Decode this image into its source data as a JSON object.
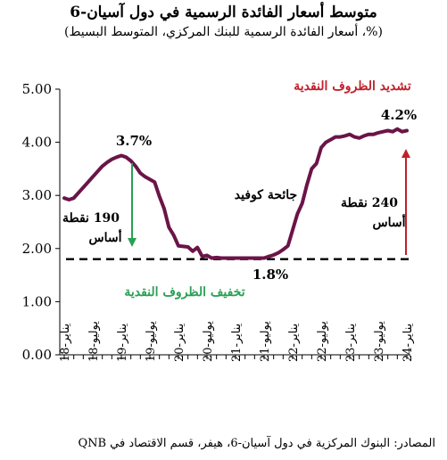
{
  "title": "متوسط أسعار الفائدة الرسمية في دول آسيان-6",
  "subtitle": "(%، أسعار الفائدة الرسمية للبنك المركزي، المتوسط البسيط)",
  "source": "المصادر: البنوك المركزية في دول آسيان-6، هيفر، قسم الاقتصاد في QNB",
  "colors": {
    "line": "#6b1448",
    "tightening": "#c0202a",
    "easing": "#2aa055",
    "reference": "#000000"
  },
  "chart_data": {
    "type": "line",
    "ylim": [
      0,
      5
    ],
    "yticks": [
      "0.00",
      "1.00",
      "2.00",
      "3.00",
      "4.00",
      "5.00"
    ],
    "categories": [
      "يناير-18",
      "يوليو-18",
      "يناير-19",
      "يوليو-19",
      "يناير-20",
      "يوليو-20",
      "يناير-21",
      "يوليو-21",
      "يناير-22",
      "يوليو-22",
      "يناير-23",
      "يوليو-23",
      "يناير-24"
    ],
    "series": [
      {
        "x": [
          0,
          0.5,
          1,
          1.5,
          2,
          2.5,
          3,
          3.5,
          4,
          4.5,
          5,
          5.5,
          6,
          6.5,
          7,
          7.5,
          8,
          8.5,
          9,
          9.5,
          10,
          10.5,
          11,
          11.5,
          12,
          12.5,
          13,
          13.5,
          14,
          14.5,
          15,
          15.5,
          16,
          16.5,
          17,
          17.5,
          18,
          18.5,
          19,
          19.5,
          20,
          20.5,
          21,
          21.5,
          22,
          22.5,
          23,
          23.5,
          24,
          24.5,
          25,
          25.5,
          26,
          26.5,
          27,
          27.5,
          28,
          28.5,
          29,
          29.5,
          30,
          30.5,
          31,
          31.5,
          32,
          32.5,
          33,
          33.5,
          34,
          34.5,
          35,
          35.5,
          36
        ],
        "y": [
          2.95,
          2.92,
          2.95,
          3.05,
          3.15,
          3.25,
          3.35,
          3.45,
          3.55,
          3.62,
          3.68,
          3.72,
          3.75,
          3.72,
          3.65,
          3.55,
          3.42,
          3.35,
          3.3,
          3.25,
          2.98,
          2.75,
          2.4,
          2.25,
          2.05,
          2.04,
          2.03,
          1.95,
          2.02,
          1.85,
          1.87,
          1.82,
          1.83,
          1.82,
          1.82,
          1.82,
          1.82,
          1.82,
          1.82,
          1.82,
          1.82,
          1.82,
          1.82,
          1.85,
          1.88,
          1.92,
          1.98,
          2.05,
          2.35,
          2.65,
          2.85,
          3.2,
          3.5,
          3.6,
          3.9,
          4.0,
          4.05,
          4.1,
          4.1,
          4.12,
          4.15,
          4.1,
          4.08,
          4.12,
          4.15,
          4.15,
          4.18,
          4.2,
          4.22,
          4.2,
          4.25,
          4.2,
          4.22
        ]
      }
    ],
    "reference_line": {
      "value": 1.8,
      "label": "1.8%"
    },
    "annotations": {
      "peak": "3.7%",
      "last": "4.2%",
      "easing_label": "تخفيف الظروف النقدية",
      "tightening_label": "تشديد الظروف النقدية",
      "covid_label": "جائحة كوفيد",
      "easing_bp_num": "190 نقطة",
      "easing_bp_unit": "أساس",
      "tightening_bp_num": "240 نقطة",
      "tightening_bp_unit": "أساس"
    }
  }
}
